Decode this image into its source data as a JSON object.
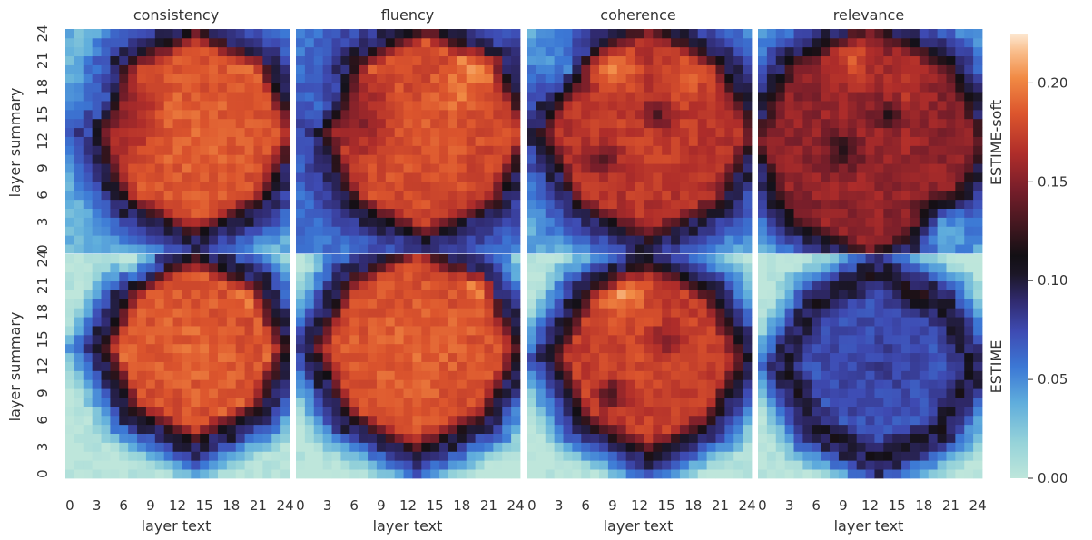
{
  "figure": {
    "panel_titles": [
      "consistency",
      "fluency",
      "coherence",
      "relevance"
    ],
    "row_labels": [
      "ESTIME-soft",
      "ESTIME"
    ],
    "xlabel": "layer text",
    "ylabel": "layer summary",
    "x_ticks": [
      "0",
      "3",
      "6",
      "9",
      "12",
      "15",
      "18",
      "21",
      "24"
    ],
    "y_ticks": [
      "0",
      "3",
      "6",
      "9",
      "12",
      "15",
      "18",
      "21",
      "24"
    ],
    "colorbar_ticks": [
      "0.00",
      "0.05",
      "0.10",
      "0.15",
      "0.20"
    ]
  },
  "chart_data": {
    "type": "heatmap",
    "grid_size": 25,
    "x_range": [
      0,
      24
    ],
    "y_range": [
      0,
      24
    ],
    "colorbar": {
      "min": 0.0,
      "max": 0.225,
      "colormap": "icefire",
      "ticks": [
        0.0,
        0.05,
        0.1,
        0.15,
        0.2
      ]
    },
    "panels": [
      {
        "row": "ESTIME-soft",
        "column": "consistency",
        "core": [
          14,
          13
        ],
        "radius": 10.5,
        "edge_scale": 1.0,
        "bg": 0.035,
        "peak": 0.19,
        "hot": [
          [
            21,
            22,
            0.03
          ]
        ],
        "holes": [
          [
            5,
            15,
            6,
            0.04
          ]
        ]
      },
      {
        "row": "ESTIME-soft",
        "column": "fluency",
        "core": [
          14,
          13
        ],
        "radius": 10.8,
        "edge_scale": 1.0,
        "bg": 0.06,
        "peak": 0.185,
        "hot": [
          [
            21,
            22,
            0.045
          ],
          [
            18,
            18,
            0.02
          ]
        ],
        "holes": [
          [
            5,
            15,
            6,
            0.04
          ]
        ]
      },
      {
        "row": "ESTIME-soft",
        "column": "coherence",
        "core": [
          13,
          13
        ],
        "radius": 11.0,
        "edge_scale": 1.0,
        "bg": 0.04,
        "peak": 0.175,
        "hot": [
          [
            9,
            20,
            0.03
          ],
          [
            17,
            19,
            0.02
          ]
        ],
        "holes": [
          [
            8,
            10,
            2.5,
            0.045
          ],
          [
            14,
            15,
            2.5,
            0.04
          ],
          [
            4,
            20,
            4,
            0.05
          ]
        ]
      },
      {
        "row": "ESTIME-soft",
        "column": "relevance",
        "core": [
          12,
          12
        ],
        "radius": 12.0,
        "edge_scale": 1.0,
        "bg": 0.03,
        "peak": 0.16,
        "hot": [
          [
            10,
            21,
            0.03
          ],
          [
            16,
            19,
            0.02
          ]
        ],
        "holes": [
          [
            9,
            11,
            3,
            0.04
          ],
          [
            14,
            15,
            2.5,
            0.035
          ],
          [
            20,
            3,
            4,
            0.08
          ]
        ]
      },
      {
        "row": "ESTIME",
        "column": "consistency",
        "core": [
          14,
          14
        ],
        "radius": 9.5,
        "edge_scale": 1.0,
        "bg": 0.0,
        "peak": 0.19,
        "hot": [
          [
            21,
            21,
            0.02
          ]
        ],
        "holes": [
          [
            7,
            24,
            4,
            0.06
          ]
        ]
      },
      {
        "row": "ESTIME",
        "column": "fluency",
        "core": [
          13,
          14
        ],
        "radius": 10.5,
        "edge_scale": 1.0,
        "bg": 0.0,
        "peak": 0.19,
        "hot": [
          [
            21,
            22,
            0.045
          ]
        ],
        "holes": []
      },
      {
        "row": "ESTIME",
        "column": "coherence",
        "core": [
          13,
          13
        ],
        "radius": 9.8,
        "edge_scale": 1.0,
        "bg": 0.0,
        "peak": 0.18,
        "hot": [
          [
            10,
            20,
            0.03
          ]
        ],
        "holes": [
          [
            9,
            9,
            2.5,
            0.045
          ],
          [
            15,
            15,
            2.5,
            0.035
          ]
        ]
      },
      {
        "row": "ESTIME",
        "column": "relevance",
        "core": [
          13,
          12
        ],
        "radius": 9.5,
        "edge_scale": 1.0,
        "bg": 0.0,
        "peak": 0.08,
        "hot": [
          [
            17,
            20,
            0.02
          ]
        ],
        "holes": []
      }
    ]
  }
}
